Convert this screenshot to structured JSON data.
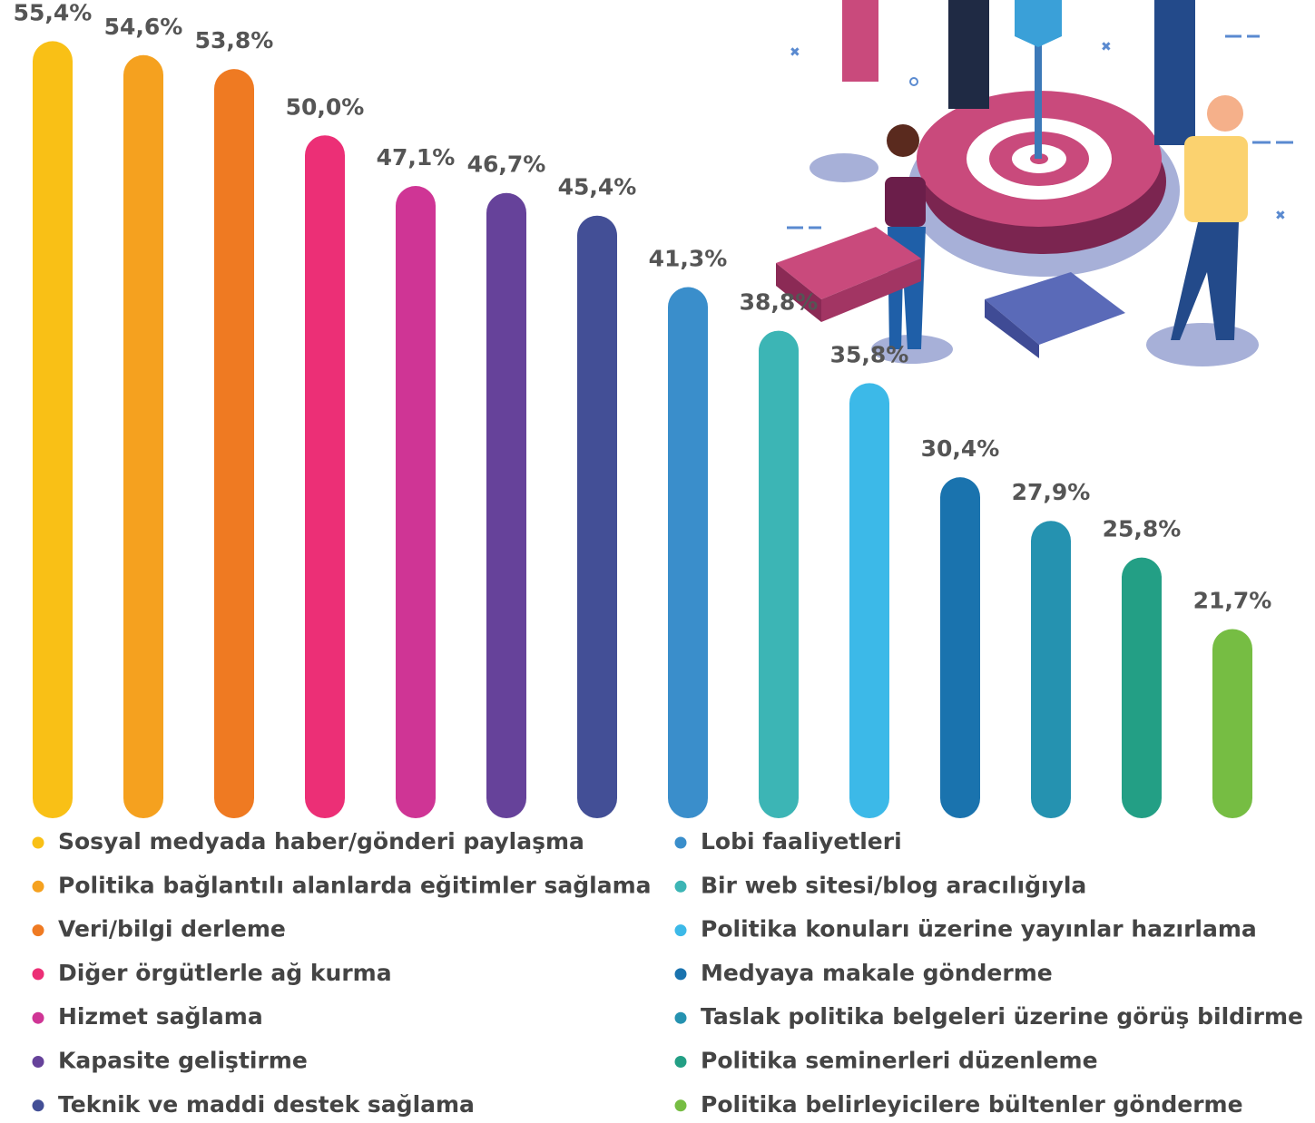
{
  "chart_data": {
    "type": "bar",
    "categories": [
      "Sosyal medyada haber/gönderi paylaşma",
      "Politika bağlantılı alanlarda eğitimler sağlama",
      "Veri/bilgi derleme",
      "Diğer örgütlerle ağ kurma",
      "Hizmet sağlama",
      "Kapasite geliştirme",
      "Teknik ve maddi destek sağlama",
      "Lobi faaliyetleri",
      "Bir web sitesi/blog aracılığıyla",
      "Politika konuları üzerine yayınlar hazırlama",
      "Medyaya makale gönderme",
      "Taslak politika belgeleri üzerine görüş bildirme",
      "Politika seminerleri düzenleme",
      "Politika belirleyicilere bültenler gönderme"
    ],
    "values": [
      55.4,
      54.6,
      53.8,
      50.0,
      47.1,
      46.7,
      45.4,
      41.3,
      38.8,
      35.8,
      30.4,
      27.9,
      25.8,
      21.7
    ],
    "value_labels": [
      "55,4%",
      "54,6%",
      "53,8%",
      "50,0%",
      "47,1%",
      "46,7%",
      "45,4%",
      "41,3%",
      "38,8%",
      "35,8%",
      "30,4%",
      "27,9%",
      "25,8%",
      "21,7%"
    ],
    "colors": [
      "#f9c016",
      "#f5a11f",
      "#ef7a22",
      "#ec2f76",
      "#cf3595",
      "#66429a",
      "#434f96",
      "#3a8ecb",
      "#3cb5b5",
      "#3cb9e8",
      "#1a73ae",
      "#2592b0",
      "#239f85",
      "#76bd43"
    ],
    "ylim": [
      12,
      56
    ]
  }
}
